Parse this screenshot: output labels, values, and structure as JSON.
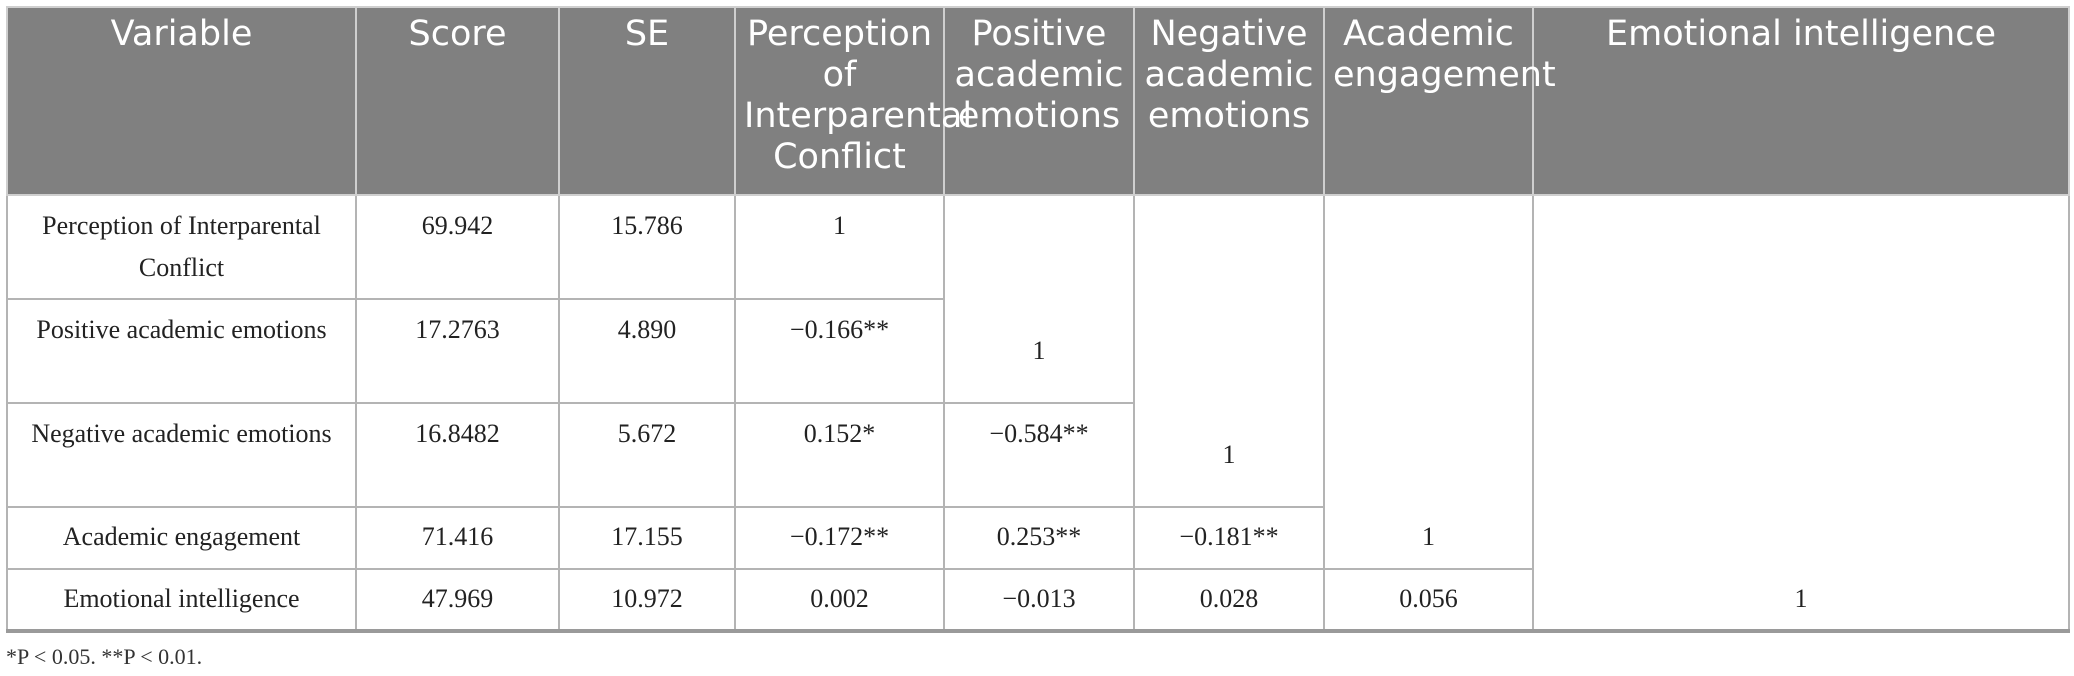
{
  "table": {
    "headers": [
      "Variable",
      "Score",
      "SE",
      "Perception of Interparental Conflict",
      "Positive academic emotions",
      "Negative academic emotions",
      "Academic engagement",
      "Emotional intelligence"
    ],
    "rows": [
      {
        "variable": "Perception of Interparental Conflict",
        "score": "69.942",
        "se": "15.786",
        "c1": "1"
      },
      {
        "variable": "Positive academic emotions",
        "score": "17.2763",
        "se": "4.890",
        "c1": "−0.166**",
        "c2": "1"
      },
      {
        "variable": "Negative academic emotions",
        "score": "16.8482",
        "se": "5.672",
        "c1": "0.152*",
        "c2": "−0.584**",
        "c3": "1"
      },
      {
        "variable": "Academic engagement",
        "score": "71.416",
        "se": "17.155",
        "c1": "−0.172**",
        "c2": "0.253**",
        "c3": "−0.181**",
        "c4": "1"
      },
      {
        "variable": "Emotional intelligence",
        "score": "47.969",
        "se": "10.972",
        "c1": "0.002",
        "c2": "−0.013",
        "c3": "0.028",
        "c4": "0.056",
        "c5": "1"
      }
    ]
  },
  "note": "*P < 0.05. **P < 0.01.",
  "colors": {
    "header_bg": "#808080",
    "header_text": "#ffffff",
    "border": "#b4b4b4"
  }
}
